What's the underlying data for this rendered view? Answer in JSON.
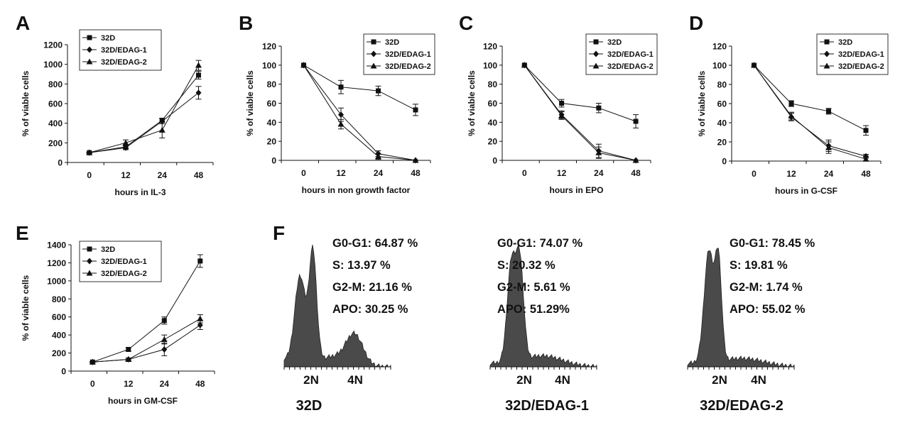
{
  "figure": {
    "panel_letters": [
      "A",
      "B",
      "C",
      "D",
      "E",
      "F"
    ]
  },
  "chart_data": [
    {
      "panel": "A",
      "type": "line",
      "x": [
        0,
        12,
        24,
        48
      ],
      "xlabel": "hours in IL-3",
      "ylabel": "% of viable cells",
      "ylim": [
        0,
        1200
      ],
      "yticks": [
        0,
        200,
        400,
        600,
        800,
        1000,
        1200
      ],
      "legend": "top-right",
      "series": [
        {
          "name": "32D",
          "marker": "square",
          "values": [
            100,
            160,
            430,
            890
          ],
          "errors": [
            5,
            20,
            20,
            40
          ]
        },
        {
          "name": "32D/EDAG-1",
          "marker": "diamond",
          "values": [
            100,
            150,
            420,
            710
          ],
          "errors": [
            5,
            20,
            25,
            65
          ]
        },
        {
          "name": "32D/EDAG-2",
          "marker": "triangle",
          "values": [
            100,
            200,
            330,
            990
          ],
          "errors": [
            5,
            30,
            80,
            50
          ]
        }
      ]
    },
    {
      "panel": "B",
      "type": "line",
      "x": [
        0,
        12,
        24,
        48
      ],
      "xlabel": "hours in non growth factor",
      "ylabel": "% of viable cells",
      "ylim": [
        0,
        120
      ],
      "yticks": [
        0,
        20,
        40,
        60,
        80,
        100,
        120
      ],
      "legend": "top-right",
      "series": [
        {
          "name": "32D",
          "marker": "square",
          "values": [
            100,
            77,
            73,
            53
          ],
          "errors": [
            0,
            7,
            5,
            6
          ]
        },
        {
          "name": "32D/EDAG-1",
          "marker": "diamond",
          "values": [
            100,
            48,
            7,
            0
          ],
          "errors": [
            0,
            7,
            3,
            0
          ]
        },
        {
          "name": "32D/EDAG-2",
          "marker": "triangle",
          "values": [
            100,
            38,
            4,
            0
          ],
          "errors": [
            0,
            5,
            3,
            0
          ]
        }
      ]
    },
    {
      "panel": "C",
      "type": "line",
      "x": [
        0,
        12,
        24,
        48
      ],
      "xlabel": "hours in EPO",
      "ylabel": "% of viable cells",
      "ylim": [
        0,
        120
      ],
      "yticks": [
        0,
        20,
        40,
        60,
        80,
        100,
        120
      ],
      "legend": "top-right",
      "series": [
        {
          "name": "32D",
          "marker": "square",
          "values": [
            100,
            60,
            55,
            41
          ],
          "errors": [
            0,
            4,
            5,
            7
          ]
        },
        {
          "name": "32D/EDAG-1",
          "marker": "diamond",
          "values": [
            100,
            48,
            10,
            0
          ],
          "errors": [
            0,
            4,
            7,
            0
          ]
        },
        {
          "name": "32D/EDAG-2",
          "marker": "triangle",
          "values": [
            100,
            47,
            8,
            0
          ],
          "errors": [
            0,
            4,
            6,
            0
          ]
        }
      ]
    },
    {
      "panel": "D",
      "type": "line",
      "x": [
        0,
        12,
        24,
        48
      ],
      "xlabel": "hours in G-CSF",
      "ylabel": "% of viable cells",
      "ylim": [
        0,
        120
      ],
      "yticks": [
        0,
        20,
        40,
        60,
        80,
        100,
        120
      ],
      "legend": "top-right",
      "series": [
        {
          "name": "32D",
          "marker": "square",
          "values": [
            100,
            60,
            52,
            32
          ],
          "errors": [
            0,
            3,
            3,
            5
          ]
        },
        {
          "name": "32D/EDAG-1",
          "marker": "diamond",
          "values": [
            100,
            46,
            16,
            5
          ],
          "errors": [
            0,
            4,
            6,
            2
          ]
        },
        {
          "name": "32D/EDAG-2",
          "marker": "triangle",
          "values": [
            100,
            47,
            14,
            2
          ],
          "errors": [
            0,
            4,
            6,
            2
          ]
        }
      ]
    },
    {
      "panel": "E",
      "type": "line",
      "x": [
        0,
        12,
        24,
        48
      ],
      "xlabel": "hours in GM-CSF",
      "ylabel": "% of viable cells",
      "ylim": [
        0,
        1400
      ],
      "yticks": [
        0,
        200,
        400,
        600,
        800,
        1000,
        1200,
        1400
      ],
      "legend": "top-left",
      "series": [
        {
          "name": "32D",
          "marker": "square",
          "values": [
            100,
            240,
            560,
            1220
          ],
          "errors": [
            5,
            20,
            40,
            70
          ]
        },
        {
          "name": "32D/EDAG-1",
          "marker": "diamond",
          "values": [
            100,
            130,
            240,
            510
          ],
          "errors": [
            5,
            15,
            70,
            50
          ]
        },
        {
          "name": "32D/EDAG-2",
          "marker": "triangle",
          "values": [
            100,
            130,
            350,
            580
          ],
          "errors": [
            5,
            15,
            50,
            45
          ]
        }
      ]
    }
  ],
  "panel_F": {
    "letter": "F",
    "xtick_labels": [
      "2N",
      "4N"
    ],
    "histograms": [
      {
        "label": "32D",
        "stats": [
          "G0-G1: 64.87 %",
          "S: 13.97 %",
          "G2-M: 21.16 %",
          "APO: 30.25 %"
        ]
      },
      {
        "label": "32D/EDAG-1",
        "stats": [
          "G0-G1: 74.07 %",
          "S: 20.32 %",
          "G2-M: 5.61 %",
          "APO: 51.29%"
        ]
      },
      {
        "label": "32D/EDAG-2",
        "stats": [
          "G0-G1: 78.45 %",
          "S: 19.81 %",
          "G2-M: 1.74 %",
          "APO: 55.02 %"
        ]
      }
    ]
  }
}
